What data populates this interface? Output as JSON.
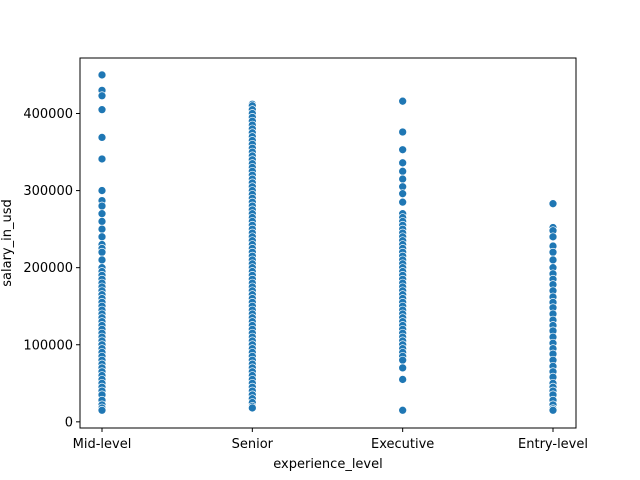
{
  "chart_data": {
    "type": "scatter",
    "xlabel": "experience_level",
    "ylabel": "salary_in_usd",
    "categories": [
      "Mid-level",
      "Senior",
      "Executive",
      "Entry-level"
    ],
    "ylim": [
      -8000,
      472000
    ],
    "yticks": [
      0,
      100000,
      200000,
      300000,
      400000
    ],
    "ytick_labels": [
      "0",
      "100000",
      "200000",
      "300000",
      "400000"
    ],
    "grid": false,
    "legend": "none",
    "marker_color": "#1f77b4",
    "points": {
      "Mid-level": [
        450000,
        430000,
        423000,
        405000,
        369000,
        341000,
        300000,
        287000,
        280000,
        270000,
        260000,
        250000,
        240000,
        230000,
        225000,
        220000,
        210000,
        200000,
        195000,
        190000,
        185000,
        180000,
        175000,
        170000,
        165000,
        160000,
        155000,
        150000,
        145000,
        140000,
        135000,
        130000,
        125000,
        120000,
        115000,
        110000,
        105000,
        100000,
        95000,
        90000,
        85000,
        80000,
        75000,
        70000,
        65000,
        60000,
        55000,
        50000,
        45000,
        40000,
        35000,
        28000,
        22000,
        18000,
        15000
      ],
      "Senior": [
        412000,
        410000,
        405000,
        400000,
        395000,
        390000,
        385000,
        380000,
        375000,
        370000,
        365000,
        360000,
        355000,
        350000,
        345000,
        340000,
        335000,
        330000,
        325000,
        320000,
        315000,
        310000,
        305000,
        300000,
        295000,
        290000,
        285000,
        280000,
        275000,
        270000,
        265000,
        260000,
        255000,
        250000,
        245000,
        240000,
        235000,
        230000,
        225000,
        220000,
        215000,
        210000,
        205000,
        200000,
        195000,
        190000,
        185000,
        180000,
        175000,
        170000,
        165000,
        160000,
        155000,
        150000,
        145000,
        140000,
        135000,
        130000,
        125000,
        120000,
        115000,
        110000,
        105000,
        100000,
        95000,
        90000,
        85000,
        80000,
        75000,
        70000,
        65000,
        60000,
        55000,
        50000,
        45000,
        40000,
        35000,
        30000,
        25000,
        20000,
        18000
      ],
      "Executive": [
        416000,
        376000,
        353000,
        336000,
        325000,
        315000,
        305000,
        296000,
        285000,
        270000,
        265000,
        260000,
        255000,
        250000,
        245000,
        240000,
        235000,
        230000,
        225000,
        220000,
        215000,
        210000,
        205000,
        200000,
        195000,
        190000,
        185000,
        180000,
        175000,
        170000,
        165000,
        160000,
        155000,
        150000,
        145000,
        140000,
        135000,
        130000,
        125000,
        120000,
        115000,
        110000,
        105000,
        100000,
        95000,
        90000,
        85000,
        80000,
        70000,
        55000,
        15000
      ],
      "Entry-level": [
        283000,
        252000,
        248000,
        240000,
        228000,
        220000,
        210000,
        200000,
        192000,
        185000,
        178000,
        170000,
        162000,
        155000,
        148000,
        140000,
        132000,
        125000,
        118000,
        110000,
        102000,
        95000,
        88000,
        80000,
        72000,
        65000,
        58000,
        50000,
        45000,
        40000,
        35000,
        28000,
        22000,
        17000,
        15000
      ]
    }
  }
}
